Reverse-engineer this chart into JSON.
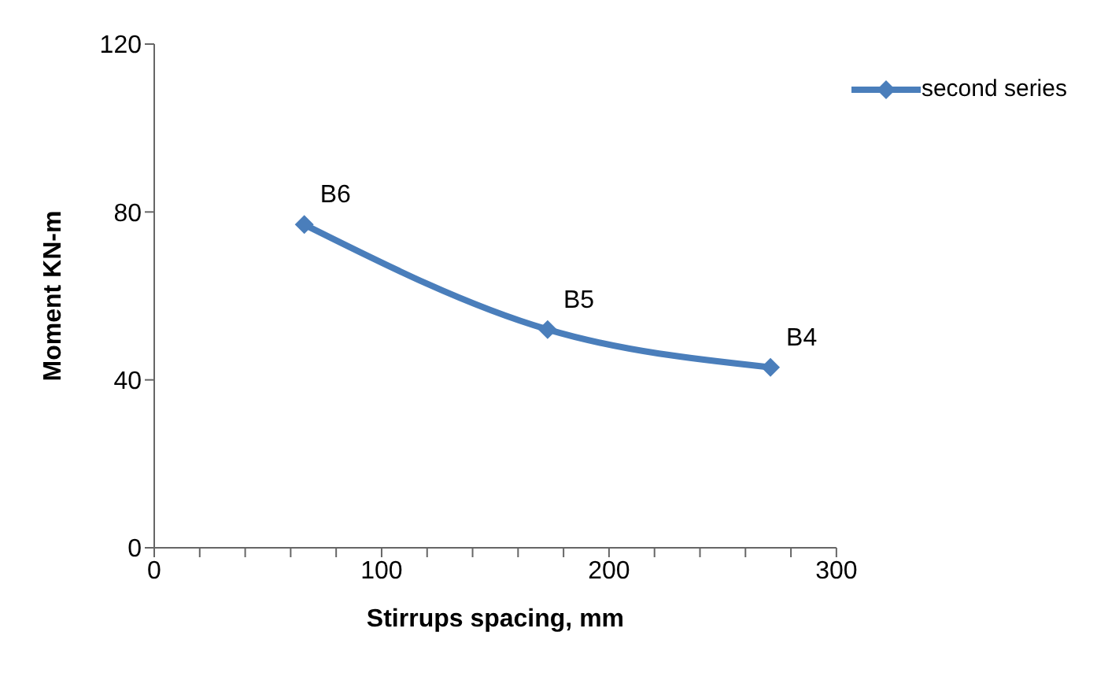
{
  "chart_data": {
    "type": "line",
    "xlabel": "Stirrups spacing, mm",
    "ylabel": "Moment KN-m",
    "x": [
      66,
      173,
      271
    ],
    "series": [
      {
        "name": "second series",
        "color": "#4a7ebb",
        "values": [
          77,
          52,
          43
        ]
      }
    ],
    "xlim": [
      0,
      300
    ],
    "xticks": [
      0,
      {
        "value": 20,
        "label": null
      },
      {
        "value": 40,
        "label": null
      },
      {
        "value": 60,
        "label": null
      },
      {
        "value": 80,
        "label": null
      },
      100,
      {
        "value": 120,
        "label": null
      },
      {
        "value": 140,
        "label": null
      },
      {
        "value": 160,
        "label": null
      },
      {
        "value": 180,
        "label": null
      },
      200,
      {
        "value": 220,
        "label": null
      },
      {
        "value": 240,
        "label": null
      },
      {
        "value": 260,
        "label": null
      },
      {
        "value": 280,
        "label": null
      },
      300
    ],
    "ylim": [
      0,
      120
    ],
    "yticks": [
      0,
      40,
      80,
      120
    ],
    "annotations": [
      {
        "text": "B6",
        "x": 66,
        "y": 77
      },
      {
        "text": "B5",
        "x": 173,
        "y": 52
      },
      {
        "text": "B4",
        "x": 271,
        "y": 43
      }
    ],
    "legend": "top right",
    "marker": "diamond",
    "line_style": "solid",
    "grid": false
  }
}
